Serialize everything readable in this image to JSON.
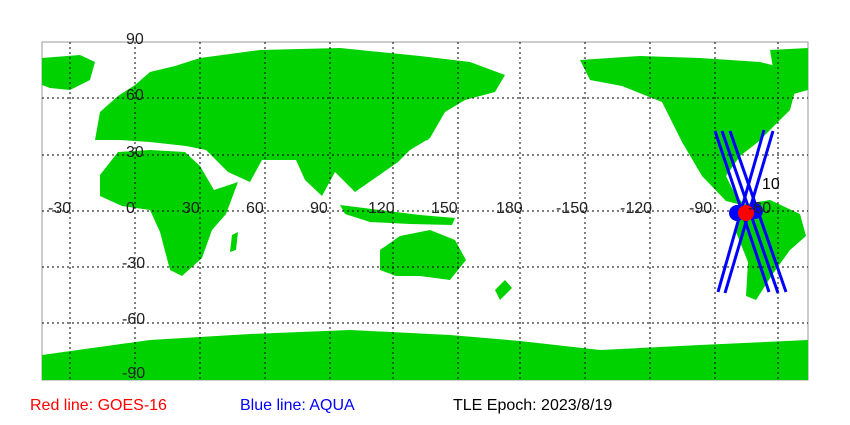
{
  "map": {
    "lon_labels": [
      "-30",
      "0",
      "30",
      "60",
      "90",
      "120",
      "150",
      "180",
      "-150",
      "-120",
      "-90",
      "-60"
    ],
    "lat_labels": [
      "90",
      "60",
      "30",
      "0",
      "-30",
      "-60",
      "-90"
    ],
    "colors": {
      "land": "#00d200",
      "ocean": "#ffffff",
      "grid": "#000000",
      "red_track": "#ff0000",
      "blue_track": "#0000ff"
    },
    "satellite_label": "10"
  },
  "legend": {
    "red": "Red line: GOES-16",
    "blue": "Blue line: AQUA",
    "epoch": "TLE Epoch: 2023/8/19"
  }
}
